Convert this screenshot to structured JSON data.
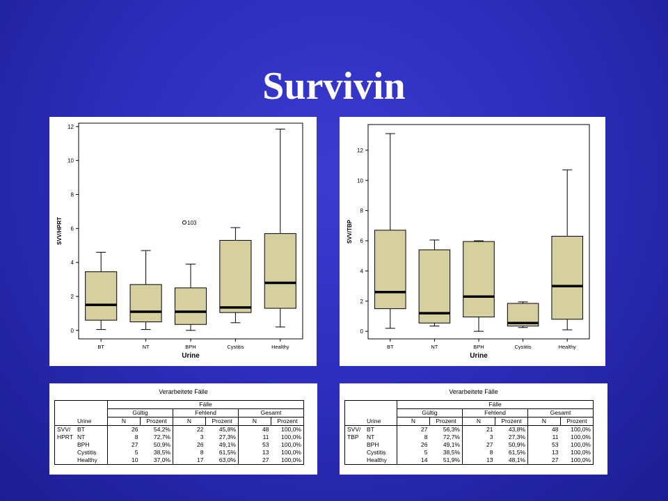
{
  "slide": {
    "title": "Survivin"
  },
  "chart_data": [
    {
      "type": "box",
      "xlabel": "Urine",
      "ylabel": "SVV/HPRT",
      "categories": [
        "BT",
        "NT",
        "BPH",
        "Cystitis",
        "Healthy"
      ],
      "ylim": [
        -0.5,
        12.2
      ],
      "yticks": [
        0,
        2,
        4,
        6,
        8,
        10,
        12
      ],
      "boxes": [
        {
          "min": 0.05,
          "q1": 0.6,
          "median": 1.5,
          "q3": 3.45,
          "max": 4.6
        },
        {
          "min": 0.05,
          "q1": 0.5,
          "median": 1.1,
          "q3": 2.7,
          "max": 4.7
        },
        {
          "min": 0.0,
          "q1": 0.35,
          "median": 1.1,
          "q3": 2.5,
          "max": 3.9
        },
        {
          "min": 0.45,
          "q1": 1.05,
          "median": 1.35,
          "q3": 5.3,
          "max": 6.05
        },
        {
          "min": 0.2,
          "q1": 1.3,
          "median": 2.8,
          "q3": 5.7,
          "max": 11.85
        }
      ],
      "outliers": [
        {
          "category": "BPH",
          "value": 6.35,
          "label": "103"
        }
      ]
    },
    {
      "type": "box",
      "xlabel": "Urine",
      "ylabel": "SVV/TBP",
      "categories": [
        "BT",
        "NT",
        "BPH",
        "Cystitis",
        "Healthy"
      ],
      "ylim": [
        -0.5,
        13.7
      ],
      "yticks": [
        0,
        2,
        4,
        6,
        8,
        10,
        12
      ],
      "boxes": [
        {
          "min": 0.2,
          "q1": 1.5,
          "median": 2.6,
          "q3": 6.7,
          "max": 13.1
        },
        {
          "min": 0.35,
          "q1": 0.55,
          "median": 1.2,
          "q3": 5.4,
          "max": 6.05
        },
        {
          "min": 0.0,
          "q1": 0.95,
          "median": 2.3,
          "q3": 5.95,
          "max": 6.0
        },
        {
          "min": 0.25,
          "q1": 0.35,
          "median": 0.55,
          "q3": 1.85,
          "max": 1.95
        },
        {
          "min": 0.1,
          "q1": 0.8,
          "median": 3.0,
          "q3": 6.3,
          "max": 10.7
        }
      ],
      "outliers": []
    }
  ],
  "tables": [
    {
      "caption": "Verarbeitete Fälle",
      "group_header": "Fälle",
      "sub_headers": [
        "Gültig",
        "Fehlend",
        "Gesamt"
      ],
      "col_headers": [
        "Urine",
        "N",
        "Prozent",
        "N",
        "Prozent",
        "N",
        "Prozent"
      ],
      "var_label_1": "SVV/",
      "var_label_2": "HPRT",
      "rows": [
        [
          "BT",
          "26",
          "54,2%",
          "22",
          "45,8%",
          "48",
          "100,0%"
        ],
        [
          "NT",
          "8",
          "72,7%",
          "3",
          "27,3%",
          "11",
          "100,0%"
        ],
        [
          "BPH",
          "27",
          "50,9%",
          "26",
          "49,1%",
          "53",
          "100,0%"
        ],
        [
          "Cystitis",
          "5",
          "38,5%",
          "8",
          "61,5%",
          "13",
          "100,0%"
        ],
        [
          "Healthy",
          "10",
          "37,0%",
          "17",
          "63,0%",
          "27",
          "100,0%"
        ]
      ]
    },
    {
      "caption": "Verarbeitete Fälle",
      "group_header": "Fälle",
      "sub_headers": [
        "Gültig",
        "Fehlend",
        "Gesamt"
      ],
      "col_headers": [
        "Urine",
        "N",
        "Prozent",
        "N",
        "Prozent",
        "N",
        "Prozent"
      ],
      "var_label_1": "SVV/",
      "var_label_2": "TBP",
      "rows": [
        [
          "BT",
          "27",
          "56,3%",
          "21",
          "43,8%",
          "48",
          "100,0%"
        ],
        [
          "NT",
          "8",
          "72,7%",
          "3",
          "27,3%",
          "11",
          "100,0%"
        ],
        [
          "BPH",
          "26",
          "49,1%",
          "27",
          "50,9%",
          "53",
          "100,0%"
        ],
        [
          "Cystitis",
          "5",
          "38,5%",
          "8",
          "61,5%",
          "13",
          "100,0%"
        ],
        [
          "Healthy",
          "14",
          "51,9%",
          "13",
          "48,1%",
          "27",
          "100,0%"
        ]
      ]
    }
  ],
  "colors": {
    "background": "#2d2ebd",
    "box_fill": "#d6cf9f",
    "title": "#ffffff"
  }
}
